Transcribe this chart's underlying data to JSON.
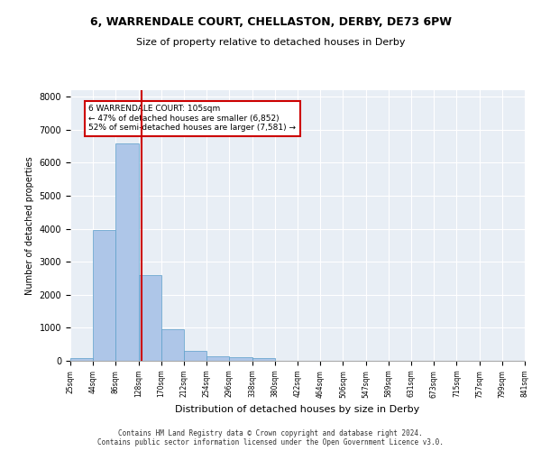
{
  "title": "6, WARRENDALE COURT, CHELLASTON, DERBY, DE73 6PW",
  "subtitle": "Size of property relative to detached houses in Derby",
  "xlabel": "Distribution of detached houses by size in Derby",
  "ylabel": "Number of detached properties",
  "bin_labels": [
    "25sqm",
    "44sqm",
    "86sqm",
    "128sqm",
    "170sqm",
    "212sqm",
    "254sqm",
    "296sqm",
    "338sqm",
    "380sqm",
    "422sqm",
    "464sqm",
    "506sqm",
    "547sqm",
    "589sqm",
    "631sqm",
    "673sqm",
    "715sqm",
    "757sqm",
    "799sqm",
    "841sqm"
  ],
  "bar_values": [
    75,
    3975,
    6600,
    2600,
    950,
    300,
    130,
    100,
    80,
    0,
    0,
    0,
    0,
    0,
    0,
    0,
    0,
    0,
    0,
    0
  ],
  "bar_color": "#aec6e8",
  "bar_edge_color": "#5a9ec9",
  "red_line_x": 2.62,
  "annotation_text": "6 WARRENDALE COURT: 105sqm\n← 47% of detached houses are smaller (6,852)\n52% of semi-detached houses are larger (7,581) →",
  "annotation_box_color": "#ffffff",
  "annotation_edge_color": "#cc0000",
  "ylim": [
    0,
    8200
  ],
  "yticks": [
    0,
    1000,
    2000,
    3000,
    4000,
    5000,
    6000,
    7000,
    8000
  ],
  "background_color": "#e8eef5",
  "grid_color": "#ffffff",
  "footer_line1": "Contains HM Land Registry data © Crown copyright and database right 2024.",
  "footer_line2": "Contains public sector information licensed under the Open Government Licence v3.0."
}
